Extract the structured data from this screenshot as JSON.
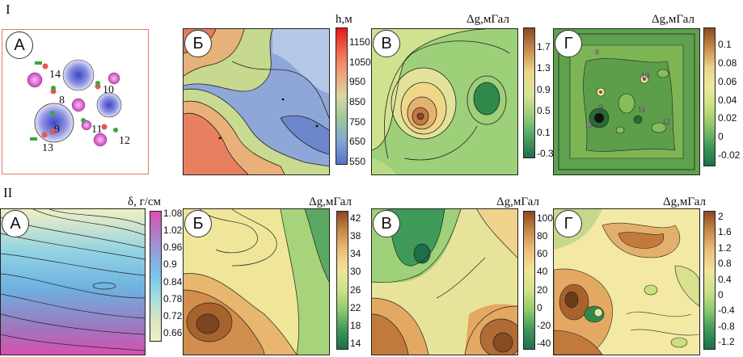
{
  "rows": {
    "top": "I",
    "bottom": "II"
  },
  "row1": {
    "schematic": {
      "letter": "А",
      "labels": [
        "14",
        "8",
        "10",
        "9",
        "11",
        "13",
        "12"
      ]
    },
    "b": {
      "letter": "Б",
      "cbar_title": "h,м",
      "ticks": [
        "1150",
        "1050",
        "950",
        "850",
        "750",
        "650",
        "550"
      ]
    },
    "v": {
      "letter": "В",
      "cbar_title": "Δg,мГал",
      "ticks": [
        "1.7",
        "1.3",
        "0.9",
        "0.5",
        "0.1",
        "-0.3"
      ]
    },
    "g": {
      "letter": "Г",
      "cbar_title": "Δg,мГал",
      "ticks": [
        "0.1",
        "0.08",
        "0.06",
        "0.04",
        "0.02",
        "0",
        "-0.02"
      ],
      "markers": [
        "8",
        "10",
        "9",
        "11",
        "13",
        "12"
      ]
    }
  },
  "row2": {
    "a": {
      "letter": "А",
      "cbar_title": "δ, г/см",
      "ticks": [
        "1.08",
        "1.02",
        "0.96",
        "0.9",
        "0.84",
        "0.78",
        "0.72",
        "0.66"
      ]
    },
    "b": {
      "letter": "Б",
      "cbar_title": "Δg,мГал",
      "ticks": [
        "42",
        "38",
        "34",
        "30",
        "26",
        "22",
        "18",
        "14"
      ]
    },
    "v": {
      "letter": "В",
      "cbar_title": "Δg,мГал",
      "ticks": [
        "100",
        "80",
        "60",
        "40",
        "20",
        "0",
        "-20",
        "-40"
      ]
    },
    "g": {
      "letter": "Г",
      "cbar_title": "Δg,мГал",
      "ticks": [
        "2",
        "1.6",
        "1.2",
        "0.8",
        "0.4",
        "0",
        "-0.4",
        "-0.8",
        "-1.2"
      ]
    }
  }
}
